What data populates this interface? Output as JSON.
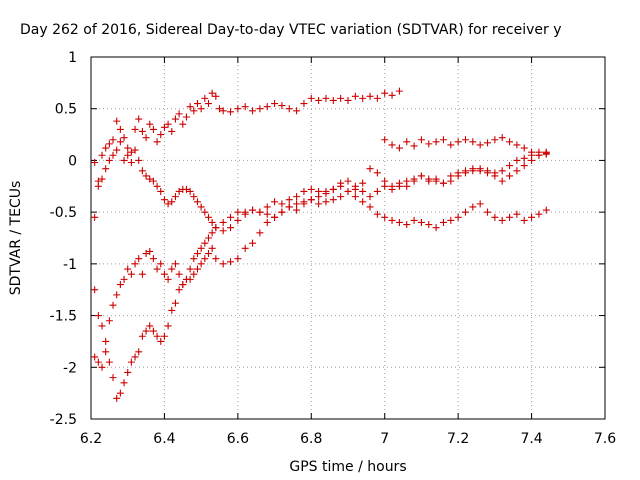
{
  "chart_data": {
    "type": "scatter",
    "title": "Day 262 of 2016, Sidereal Day-to-day VTEC variation (SDTVAR) for receiver y",
    "xlabel": "GPS time / hours",
    "ylabel": "SDTVAR / TECUs",
    "xlim": [
      6.2,
      7.6
    ],
    "ylim": [
      -2.5,
      1
    ],
    "xticks": [
      "6.2",
      "6.4",
      "6.6",
      "6.8",
      "7",
      "7.2",
      "7.4",
      "7.6"
    ],
    "yticks": [
      "1",
      "0.5",
      "0",
      "-0.5",
      "-1",
      "-1.5",
      "-2",
      "-2.5"
    ],
    "grid": true,
    "marker": "plus",
    "color": "#cc0000",
    "series": [
      {
        "x": [
          6.21,
          6.22,
          6.23,
          6.24,
          6.25,
          6.26,
          6.27,
          6.28,
          6.29,
          6.3,
          6.31,
          6.32,
          6.33,
          6.34,
          6.35,
          6.36,
          6.37,
          6.38,
          6.39,
          6.4,
          6.41,
          6.42,
          6.43,
          6.44,
          6.45,
          6.46,
          6.47,
          6.48,
          6.49,
          6.5,
          6.51,
          6.52,
          6.53,
          6.54,
          6.55,
          6.56,
          6.58,
          6.6,
          6.62,
          6.64,
          6.66,
          6.68,
          6.7,
          6.72,
          6.74,
          6.76,
          6.78,
          6.8,
          6.82,
          6.84,
          6.86,
          6.88,
          6.9,
          6.92,
          6.94,
          6.96,
          6.98,
          7.0,
          7.02,
          7.04
        ],
        "y": [
          -0.02,
          -0.2,
          0.05,
          0.12,
          0.16,
          0.2,
          0.38,
          0.3,
          0.22,
          0.12,
          0.08,
          0.3,
          0.4,
          0.28,
          0.22,
          0.35,
          0.3,
          0.18,
          0.25,
          0.32,
          0.35,
          0.28,
          0.4,
          0.45,
          0.35,
          0.42,
          0.52,
          0.48,
          0.55,
          0.5,
          0.6,
          0.55,
          0.65,
          0.62,
          0.5,
          0.48,
          0.47,
          0.5,
          0.52,
          0.48,
          0.5,
          0.52,
          0.55,
          0.53,
          0.5,
          0.48,
          0.55,
          0.6,
          0.58,
          0.6,
          0.58,
          0.6,
          0.58,
          0.62,
          0.6,
          0.62,
          0.6,
          0.65,
          0.63,
          0.67
        ]
      },
      {
        "x": [
          7.0,
          7.02,
          7.04,
          7.06,
          7.08,
          7.1,
          7.12,
          7.14,
          7.16,
          7.18,
          7.2,
          7.22,
          7.24,
          7.26,
          7.28,
          7.3,
          7.32,
          7.34,
          7.36,
          7.38,
          7.4,
          7.42,
          7.44
        ],
        "y": [
          0.2,
          0.15,
          0.12,
          0.18,
          0.14,
          0.2,
          0.16,
          0.18,
          0.2,
          0.15,
          0.18,
          0.2,
          0.18,
          0.15,
          0.17,
          0.2,
          0.22,
          0.18,
          0.15,
          0.12,
          0.08,
          0.05,
          0.07
        ]
      },
      {
        "x": [
          6.21,
          6.22,
          6.23,
          6.24,
          6.25,
          6.26,
          6.27,
          6.28,
          6.29,
          6.3,
          6.31,
          6.32,
          6.33,
          6.34,
          6.35,
          6.36,
          6.37,
          6.38,
          6.39,
          6.4,
          6.41,
          6.42,
          6.43,
          6.44,
          6.45,
          6.46,
          6.47,
          6.48,
          6.49,
          6.5,
          6.51,
          6.52,
          6.53,
          6.54,
          6.56,
          6.58,
          6.6,
          6.62,
          6.64,
          6.66,
          6.68,
          6.7,
          6.72,
          6.74,
          6.76,
          6.78,
          6.8,
          6.82,
          6.84,
          6.86,
          6.88,
          6.9,
          6.92,
          6.94,
          6.96,
          6.98,
          7.0,
          7.02,
          7.04,
          7.06,
          7.08,
          7.1,
          7.12,
          7.14,
          7.16,
          7.18,
          7.2,
          7.22,
          7.24,
          7.26,
          7.28,
          7.3,
          7.32,
          7.34,
          7.36,
          7.38,
          7.4,
          7.42,
          7.44
        ],
        "y": [
          -0.55,
          -0.25,
          -0.18,
          -0.08,
          0.0,
          0.05,
          0.1,
          0.18,
          0.0,
          0.05,
          -0.02,
          0.1,
          0.0,
          -0.1,
          -0.15,
          -0.18,
          -0.2,
          -0.25,
          -0.3,
          -0.38,
          -0.42,
          -0.4,
          -0.35,
          -0.3,
          -0.28,
          -0.28,
          -0.3,
          -0.35,
          -0.4,
          -0.45,
          -0.5,
          -0.55,
          -0.6,
          -0.65,
          -0.68,
          -0.65,
          -0.58,
          -0.5,
          -0.48,
          -0.5,
          -0.52,
          -0.55,
          -0.5,
          -0.45,
          -0.42,
          -0.4,
          -0.38,
          -0.42,
          -0.4,
          -0.38,
          -0.35,
          -0.3,
          -0.35,
          -0.4,
          -0.45,
          -0.52,
          -0.55,
          -0.58,
          -0.6,
          -0.62,
          -0.58,
          -0.6,
          -0.62,
          -0.65,
          -0.6,
          -0.58,
          -0.55,
          -0.5,
          -0.45,
          -0.42,
          -0.5,
          -0.55,
          -0.58,
          -0.55,
          -0.52,
          -0.58,
          -0.55,
          -0.52,
          -0.48
        ]
      },
      {
        "x": [
          6.21,
          6.22,
          6.23,
          6.24,
          6.25,
          6.26,
          6.27,
          6.28,
          6.29,
          6.3,
          6.31,
          6.32,
          6.33,
          6.34,
          6.35,
          6.36,
          6.37,
          6.38,
          6.39,
          6.4,
          6.41,
          6.42,
          6.43,
          6.44,
          6.45,
          6.46,
          6.47,
          6.48,
          6.49,
          6.5,
          6.51,
          6.52,
          6.53,
          6.54,
          6.56,
          6.58,
          6.6,
          6.62,
          6.64,
          6.66,
          6.68,
          6.7,
          6.72,
          6.74,
          6.76,
          6.78,
          6.8,
          6.82,
          6.84,
          6.86,
          6.88,
          6.9,
          6.92,
          6.94,
          6.96,
          6.98,
          7.0,
          7.02,
          7.04,
          7.06,
          7.08,
          7.1,
          7.12,
          7.14,
          7.16,
          7.18,
          7.2,
          7.22,
          7.24,
          7.26,
          7.28,
          7.3,
          7.32,
          7.34,
          7.36,
          7.38,
          7.4,
          7.42,
          7.44
        ],
        "y": [
          -1.25,
          -1.5,
          -1.6,
          -1.75,
          -1.55,
          -1.4,
          -1.3,
          -1.2,
          -1.15,
          -1.05,
          -1.1,
          -1.0,
          -0.95,
          -1.1,
          -0.9,
          -0.88,
          -0.95,
          -1.05,
          -1.0,
          -1.1,
          -1.15,
          -1.05,
          -1.0,
          -1.1,
          -1.2,
          -1.15,
          -1.05,
          -0.95,
          -0.9,
          -0.85,
          -0.8,
          -0.75,
          -0.7,
          -0.65,
          -0.6,
          -0.55,
          -0.5,
          -0.52,
          -0.48,
          -0.5,
          -0.45,
          -0.4,
          -0.42,
          -0.38,
          -0.35,
          -0.3,
          -0.28,
          -0.3,
          -0.32,
          -0.28,
          -0.25,
          -0.3,
          -0.28,
          -0.22,
          -0.08,
          -0.12,
          -0.2,
          -0.25,
          -0.22,
          -0.25,
          -0.2,
          -0.15,
          -0.18,
          -0.2,
          -0.22,
          -0.2,
          -0.15,
          -0.12,
          -0.1,
          -0.08,
          -0.1,
          -0.12,
          -0.1,
          -0.05,
          0.0,
          0.02,
          0.05,
          0.08,
          0.06
        ]
      },
      {
        "x": [
          6.21,
          6.22,
          6.23,
          6.24,
          6.25,
          6.26,
          6.27,
          6.28,
          6.29,
          6.3,
          6.31,
          6.32,
          6.33,
          6.34,
          6.35,
          6.36,
          6.37,
          6.38,
          6.39,
          6.4,
          6.41,
          6.42,
          6.43,
          6.44,
          6.45,
          6.46,
          6.47,
          6.48,
          6.49,
          6.5,
          6.51,
          6.52,
          6.53,
          6.54,
          6.56,
          6.58,
          6.6,
          6.62,
          6.64,
          6.66,
          6.68,
          6.7,
          6.72,
          6.74,
          6.76,
          6.78,
          6.8,
          6.82,
          6.84,
          6.86,
          6.88,
          6.9,
          6.92,
          6.94,
          6.96,
          6.98,
          7.0,
          7.02,
          7.04,
          7.06,
          7.08,
          7.1,
          7.12,
          7.14,
          7.16,
          7.18,
          7.2,
          7.22,
          7.24,
          7.26,
          7.28,
          7.3,
          7.32,
          7.34,
          7.36,
          7.38,
          7.4,
          7.42,
          7.44
        ],
        "y": [
          -1.9,
          -1.95,
          -2.0,
          -1.85,
          -1.95,
          -2.1,
          -2.3,
          -2.25,
          -2.15,
          -2.05,
          -1.95,
          -1.9,
          -1.85,
          -1.7,
          -1.65,
          -1.6,
          -1.65,
          -1.7,
          -1.75,
          -1.7,
          -1.6,
          -1.45,
          -1.38,
          -1.25,
          -1.2,
          -1.15,
          -1.15,
          -1.1,
          -1.05,
          -1.0,
          -0.95,
          -0.9,
          -0.85,
          -0.95,
          -1.0,
          -0.98,
          -0.95,
          -0.85,
          -0.8,
          -0.7,
          -0.6,
          -0.55,
          -0.5,
          -0.45,
          -0.48,
          -0.42,
          -0.38,
          -0.35,
          -0.3,
          -0.28,
          -0.22,
          -0.2,
          -0.25,
          -0.3,
          -0.35,
          -0.3,
          -0.25,
          -0.28,
          -0.25,
          -0.2,
          -0.18,
          -0.15,
          -0.2,
          -0.18,
          -0.22,
          -0.15,
          -0.12,
          -0.1,
          -0.08,
          -0.1,
          -0.12,
          -0.15,
          -0.2,
          -0.15,
          -0.1,
          -0.05,
          0.0,
          0.05,
          0.08
        ]
      }
    ]
  }
}
